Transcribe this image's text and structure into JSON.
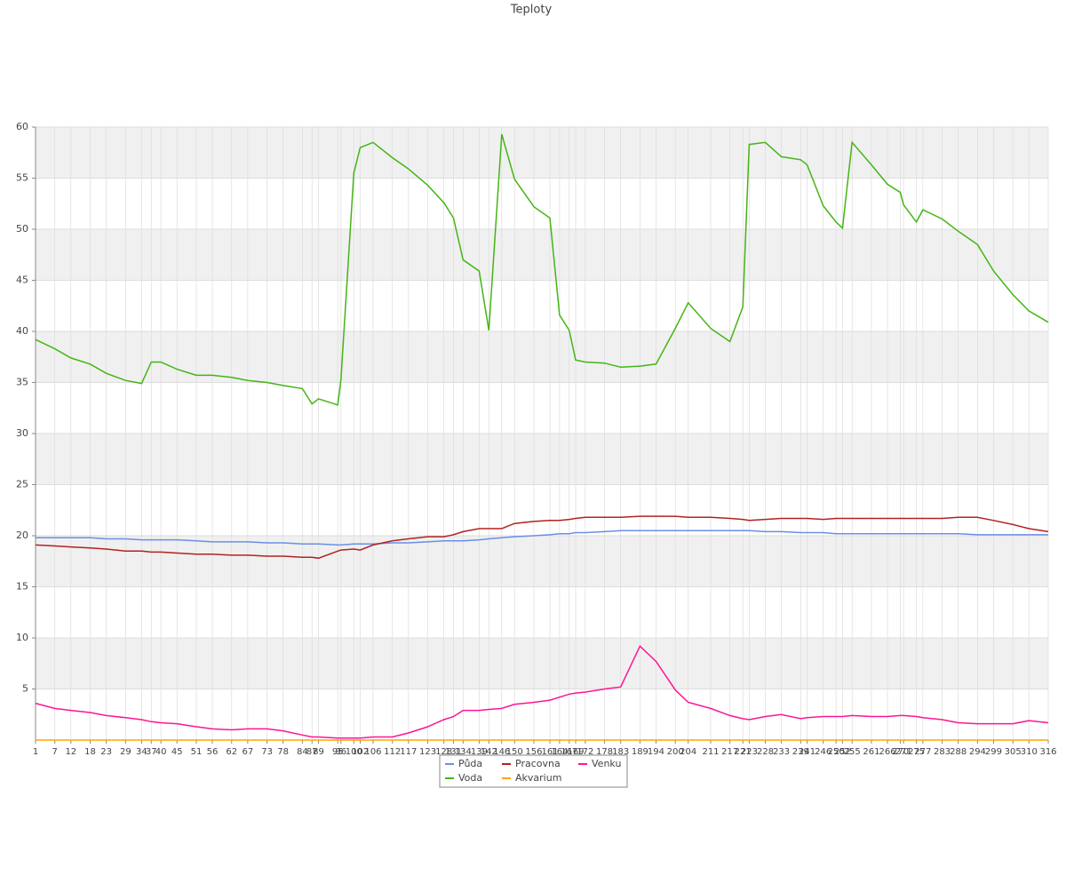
{
  "chart_data": {
    "type": "line",
    "title": "Teploty",
    "x": [
      1,
      7,
      12,
      18,
      23,
      29,
      34,
      37,
      40,
      45,
      51,
      56,
      62,
      67,
      73,
      78,
      84,
      87,
      89,
      95,
      96,
      100,
      102,
      106,
      112,
      117,
      123,
      128,
      131,
      134,
      139,
      142,
      146,
      150,
      156,
      161,
      164,
      167,
      169,
      172,
      178,
      183,
      189,
      194,
      200,
      204,
      211,
      217,
      221,
      223,
      228,
      233,
      239,
      241,
      246,
      250,
      252,
      255,
      261,
      266,
      270,
      271,
      275,
      277,
      283,
      288,
      294,
      299,
      305,
      310,
      316
    ],
    "xlim": [
      1,
      316
    ],
    "xticks": [
      1,
      7,
      12,
      18,
      23,
      29,
      34,
      37,
      40,
      45,
      51,
      56,
      62,
      67,
      73,
      78,
      84,
      87,
      89,
      95,
      96,
      100,
      102,
      106,
      112,
      117,
      123,
      128,
      131,
      134,
      139,
      142,
      146,
      150,
      156,
      161,
      164,
      167,
      169,
      172,
      178,
      183,
      189,
      194,
      200,
      204,
      211,
      217,
      221,
      223,
      228,
      233,
      239,
      241,
      246,
      250,
      252,
      255,
      261,
      266,
      270,
      271,
      275,
      277,
      283,
      288,
      294,
      299,
      305,
      310,
      316
    ],
    "ylim": [
      0,
      60
    ],
    "yticks": [
      5,
      10,
      15,
      20,
      25,
      30,
      35,
      40,
      45,
      50,
      55,
      60
    ],
    "grid": true,
    "legend": "bottom",
    "series": [
      {
        "name": "Půda",
        "color": "#6b8fe6",
        "values": [
          19.8,
          19.8,
          19.8,
          19.8,
          19.7,
          19.7,
          19.6,
          19.6,
          19.6,
          19.6,
          19.5,
          19.4,
          19.4,
          19.4,
          19.3,
          19.3,
          19.2,
          19.2,
          19.2,
          19.1,
          19.1,
          19.2,
          19.2,
          19.2,
          19.3,
          19.3,
          19.4,
          19.5,
          19.5,
          19.5,
          19.6,
          19.7,
          19.8,
          19.9,
          20.0,
          20.1,
          20.2,
          20.2,
          20.3,
          20.3,
          20.4,
          20.5,
          20.5,
          20.5,
          20.5,
          20.5,
          20.5,
          20.5,
          20.5,
          20.5,
          20.4,
          20.4,
          20.3,
          20.3,
          20.3,
          20.2,
          20.2,
          20.2,
          20.2,
          20.2,
          20.2,
          20.2,
          20.2,
          20.2,
          20.2,
          20.2,
          20.1,
          20.1,
          20.1,
          20.1,
          20.1
        ]
      },
      {
        "name": "Pracovna",
        "color": "#b22222",
        "values": [
          19.1,
          19.0,
          18.9,
          18.8,
          18.7,
          18.5,
          18.5,
          18.4,
          18.4,
          18.3,
          18.2,
          18.2,
          18.1,
          18.1,
          18.0,
          18.0,
          17.9,
          17.9,
          17.8,
          18.5,
          18.6,
          18.7,
          18.6,
          19.1,
          19.5,
          19.7,
          19.9,
          19.9,
          20.1,
          20.4,
          20.7,
          20.7,
          20.7,
          21.2,
          21.4,
          21.5,
          21.5,
          21.6,
          21.7,
          21.8,
          21.8,
          21.8,
          21.9,
          21.9,
          21.9,
          21.8,
          21.8,
          21.7,
          21.6,
          21.5,
          21.6,
          21.7,
          21.7,
          21.7,
          21.6,
          21.7,
          21.7,
          21.7,
          21.7,
          21.7,
          21.7,
          21.7,
          21.7,
          21.7,
          21.7,
          21.8,
          21.8,
          21.5,
          21.1,
          20.7,
          20.4
        ]
      },
      {
        "name": "Venku",
        "color": "#ff1493",
        "values": [
          3.6,
          3.1,
          2.9,
          2.7,
          2.4,
          2.2,
          2.0,
          1.8,
          1.7,
          1.6,
          1.3,
          1.1,
          1.0,
          1.1,
          1.1,
          0.9,
          0.5,
          0.3,
          0.3,
          0.2,
          0.2,
          0.2,
          0.2,
          0.3,
          0.3,
          0.7,
          1.3,
          2.0,
          2.3,
          2.9,
          2.9,
          3.0,
          3.1,
          3.5,
          3.7,
          3.9,
          4.2,
          4.5,
          4.6,
          4.7,
          5.0,
          5.2,
          9.2,
          7.7,
          4.9,
          3.7,
          3.1,
          2.4,
          2.1,
          2.0,
          2.3,
          2.5,
          2.1,
          2.2,
          2.3,
          2.3,
          2.3,
          2.4,
          2.3,
          2.3,
          2.4,
          2.4,
          2.3,
          2.2,
          2.0,
          1.7,
          1.6,
          1.6,
          1.6,
          1.9,
          1.7
        ]
      },
      {
        "name": "Voda",
        "color": "#44b514",
        "values": [
          39.2,
          38.3,
          37.4,
          36.8,
          35.9,
          35.2,
          34.9,
          37.0,
          37.0,
          36.3,
          35.7,
          35.7,
          35.5,
          35.2,
          35.0,
          34.7,
          34.4,
          32.9,
          33.4,
          32.8,
          35.3,
          55.5,
          58.0,
          58.5,
          57.0,
          55.9,
          54.3,
          52.6,
          51.1,
          47.0,
          45.9,
          40.1,
          59.3,
          54.9,
          52.2,
          51.1,
          41.6,
          40.1,
          37.2,
          37.0,
          36.9,
          36.5,
          36.6,
          36.8,
          40.3,
          42.8,
          40.3,
          39.0,
          42.4,
          58.3,
          58.5,
          57.1,
          56.8,
          56.3,
          52.3,
          50.7,
          50.1,
          58.5,
          56.3,
          54.4,
          53.6,
          52.4,
          50.7,
          51.9,
          51.0,
          49.8,
          48.5,
          45.9,
          43.6,
          42.0,
          40.9
        ]
      },
      {
        "name": "Akvarium",
        "color": "#ffa500",
        "values": [
          0,
          0,
          0,
          0,
          0,
          0,
          0,
          0,
          0,
          0,
          0,
          0,
          0,
          0,
          0,
          0,
          0,
          0,
          0,
          0,
          0,
          0,
          0,
          0,
          0,
          0,
          0,
          0,
          0,
          0,
          0,
          0,
          0,
          0,
          0,
          0,
          0,
          0,
          0,
          0,
          0,
          0,
          0,
          0,
          0,
          0,
          0,
          0,
          0,
          0,
          0,
          0,
          0,
          0,
          0,
          0,
          0,
          0,
          0,
          0,
          0,
          0,
          0,
          0,
          0,
          0,
          0,
          0,
          0,
          0,
          0
        ]
      }
    ]
  }
}
